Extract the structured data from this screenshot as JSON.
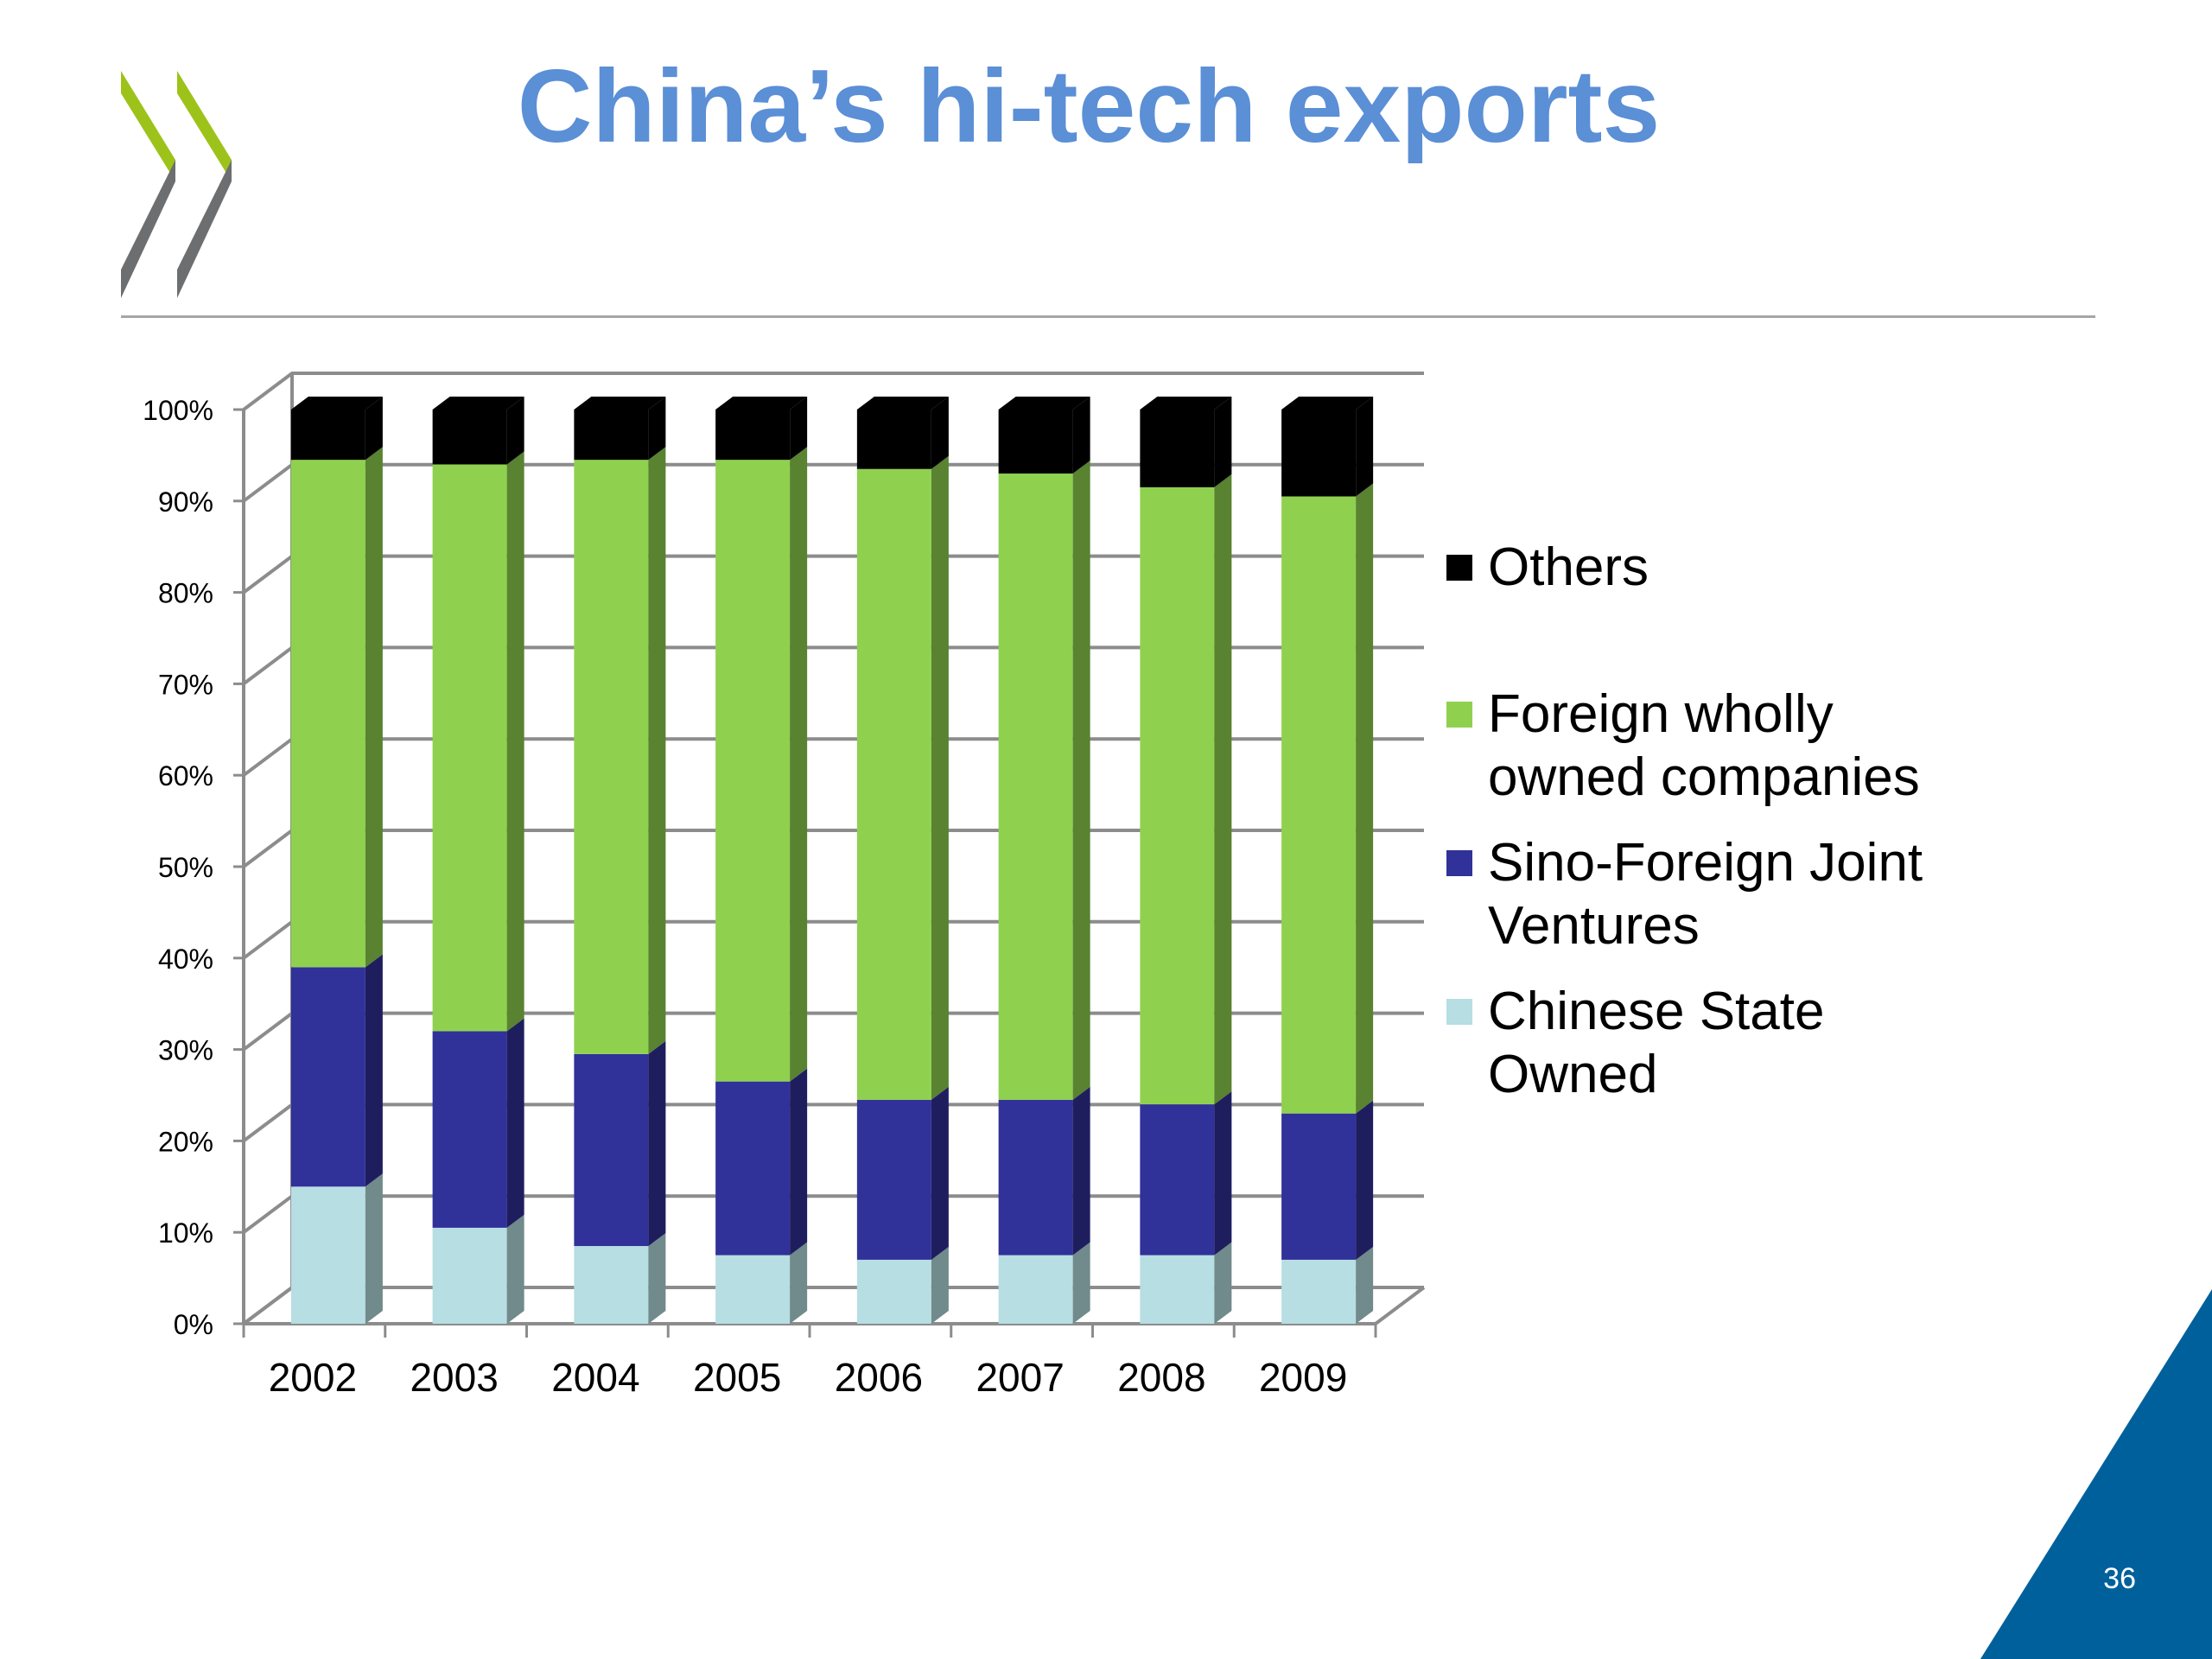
{
  "slide": {
    "title": "China’s hi-tech exports",
    "page_number": "36"
  },
  "colors": {
    "title": "#5b8fd6",
    "logo_green": "#9dc31a",
    "logo_grey": "#6d6e70",
    "corner_blue": "#00609c"
  },
  "chart_data": {
    "type": "bar",
    "stacked": true,
    "percent": true,
    "three_d": true,
    "categories": [
      "2002",
      "2003",
      "2004",
      "2005",
      "2006",
      "2007",
      "2008",
      "2009"
    ],
    "series": [
      {
        "name": "Chinese State Owned",
        "color": "#b7dee2",
        "values": [
          15,
          10.5,
          8.5,
          7.5,
          7,
          7.5,
          7.5,
          7
        ]
      },
      {
        "name": "Sino-Foreign Joint Ventures",
        "color": "#31319a",
        "values": [
          24,
          21.5,
          21,
          19,
          17.5,
          17,
          16.5,
          16
        ]
      },
      {
        "name": "Foreign wholly owned companies",
        "color": "#8fd14f",
        "values": [
          55.5,
          62,
          65,
          68,
          69,
          68.5,
          67.5,
          67.5
        ]
      },
      {
        "name": "Others",
        "color": "#000000",
        "values": [
          5.5,
          6,
          5.5,
          5.5,
          6.5,
          7,
          8.5,
          9.5
        ]
      }
    ],
    "legend_order": [
      "Others",
      "Foreign wholly owned companies",
      "Sino-Foreign Joint Ventures",
      "Chinese State Owned"
    ],
    "yticks": [
      "0%",
      "10%",
      "20%",
      "30%",
      "40%",
      "50%",
      "60%",
      "70%",
      "80%",
      "90%",
      "100%"
    ],
    "ylim": [
      0,
      100
    ],
    "grid": true,
    "legend_position": "right"
  }
}
